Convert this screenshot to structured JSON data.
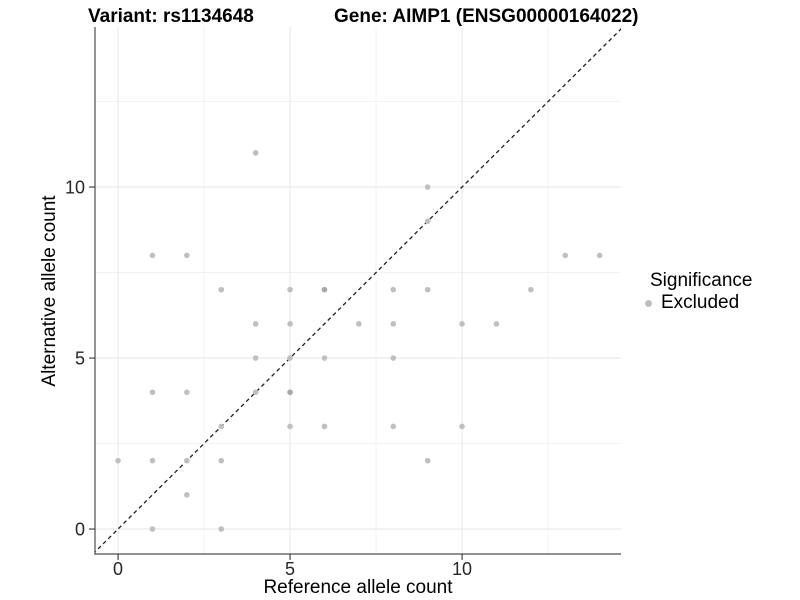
{
  "header": {
    "variant_title": "Variant: rs1134648",
    "gene_title": "Gene: AIMP1 (ENSG00000164022)"
  },
  "chart_data": {
    "type": "scatter",
    "title": "Variant: rs1134648 — Gene: AIMP1 (ENSG00000164022)",
    "xlabel": "Reference allele count",
    "ylabel": "Alternative allele count",
    "xlim": [
      -0.67,
      14.62
    ],
    "ylim": [
      -0.73,
      14.68
    ],
    "x_major_ticks": [
      0,
      5,
      10
    ],
    "y_major_ticks": [
      0,
      5,
      10
    ],
    "x_minor_ticks": [
      2.5,
      7.5,
      12.5
    ],
    "y_minor_ticks": [
      2.5,
      7.5,
      12.5
    ],
    "grid": "major-and-minor",
    "identity_line": {
      "type": "dashed",
      "equation": "y = x"
    },
    "points": [
      [
        1,
        0
      ],
      [
        3,
        0
      ],
      [
        2,
        1
      ],
      [
        0,
        2
      ],
      [
        1,
        2
      ],
      [
        2,
        2
      ],
      [
        3,
        2
      ],
      [
        9,
        2
      ],
      [
        3,
        3
      ],
      [
        5,
        3
      ],
      [
        6,
        3
      ],
      [
        8,
        3
      ],
      [
        10,
        3
      ],
      [
        1,
        4
      ],
      [
        2,
        4
      ],
      [
        4,
        4
      ],
      [
        5,
        4,
        2
      ],
      [
        4,
        5
      ],
      [
        5,
        5
      ],
      [
        6,
        5
      ],
      [
        8,
        5
      ],
      [
        4,
        6
      ],
      [
        5,
        6
      ],
      [
        7,
        6
      ],
      [
        8,
        6
      ],
      [
        10,
        6
      ],
      [
        11,
        6
      ],
      [
        3,
        7
      ],
      [
        5,
        7
      ],
      [
        6,
        7,
        2
      ],
      [
        8,
        7
      ],
      [
        9,
        7
      ],
      [
        12,
        7
      ],
      [
        1,
        8
      ],
      [
        2,
        8
      ],
      [
        13,
        8
      ],
      [
        14,
        8
      ],
      [
        9,
        9
      ],
      [
        9,
        10
      ],
      [
        4,
        11
      ]
    ],
    "legend": {
      "title": "Significance",
      "position": "right",
      "items": [
        {
          "label": "Excluded",
          "color": "#bfbfbf"
        }
      ]
    },
    "colors": {
      "point": "#bfbfbf",
      "point_overlap": "#a8a8a8",
      "grid_major": "#e6e6e6",
      "grid_minor": "#f0f0f0",
      "axis_line": "#4d4d4d",
      "tick_mark": "#333333",
      "tick_label": "#262626",
      "identity_line": "#1f1f1f",
      "background": "#ffffff"
    }
  }
}
